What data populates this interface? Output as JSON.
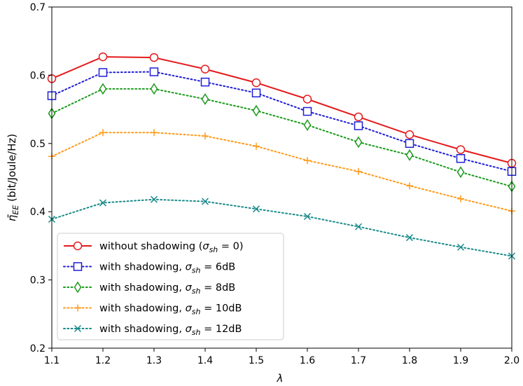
{
  "chart_data": {
    "type": "line",
    "x": [
      1.1,
      1.2,
      1.3,
      1.4,
      1.5,
      1.6,
      1.7,
      1.8,
      1.9,
      2.0
    ],
    "xlabel": "λ",
    "ylabel": "η̄EE (bit/Joule/Hz)",
    "xlim": [
      1.1,
      2.0
    ],
    "ylim": [
      0.2,
      0.7
    ],
    "xticks": [
      1.1,
      1.2,
      1.3,
      1.4,
      1.5,
      1.6,
      1.7,
      1.8,
      1.9,
      2.0
    ],
    "xtick_labels": [
      "1.1",
      "1.2",
      "1.3",
      "1.4",
      "1.5",
      "1.6",
      "1.7",
      "1.8",
      "1.9",
      "2.0"
    ],
    "yticks": [
      0.2,
      0.3,
      0.4,
      0.5,
      0.6,
      0.7
    ],
    "ytick_labels": [
      "0.2",
      "0.3",
      "0.4",
      "0.5",
      "0.6",
      "0.7"
    ],
    "grid": false,
    "legend_position": "bottom-left",
    "series": [
      {
        "name": "without shadowing (σsh = 0)",
        "color": "#e41a1c",
        "linestyle": "solid",
        "marker": "circle",
        "values": [
          0.595,
          0.627,
          0.626,
          0.609,
          0.589,
          0.565,
          0.539,
          0.513,
          0.491,
          0.471
        ]
      },
      {
        "name": "with shadowing, σsh = 6dB",
        "color": "#1f1fd6",
        "linestyle": "dotted",
        "marker": "square",
        "values": [
          0.57,
          0.604,
          0.605,
          0.59,
          0.574,
          0.547,
          0.526,
          0.5,
          0.478,
          0.459
        ]
      },
      {
        "name": "with shadowing, σsh = 8dB",
        "color": "#1a9a1a",
        "linestyle": "dotted",
        "marker": "diamond",
        "values": [
          0.544,
          0.58,
          0.58,
          0.565,
          0.548,
          0.527,
          0.502,
          0.483,
          0.458,
          0.437
        ]
      },
      {
        "name": "with shadowing, σsh = 10dB",
        "color": "#ff9a1a",
        "linestyle": "dotted",
        "marker": "plus",
        "values": [
          0.481,
          0.516,
          0.516,
          0.511,
          0.496,
          0.475,
          0.459,
          0.438,
          0.419,
          0.401
        ]
      },
      {
        "name": "with shadowing, σsh = 12dB",
        "color": "#1a8a8a",
        "linestyle": "dotted",
        "marker": "x",
        "values": [
          0.389,
          0.413,
          0.418,
          0.415,
          0.404,
          0.393,
          0.378,
          0.362,
          0.348,
          0.335
        ]
      }
    ],
    "legend": [
      {
        "prefix": "without shadowing (",
        "sym": "σ",
        "sub": "sh",
        "suffix": " = 0)"
      },
      {
        "prefix": "with shadowing, ",
        "sym": "σ",
        "sub": "sh",
        "suffix": " = 6dB"
      },
      {
        "prefix": "with shadowing, ",
        "sym": "σ",
        "sub": "sh",
        "suffix": " = 8dB"
      },
      {
        "prefix": "with shadowing, ",
        "sym": "σ",
        "sub": "sh",
        "suffix": " = 10dB"
      },
      {
        "prefix": "with shadowing, ",
        "sym": "σ",
        "sub": "sh",
        "suffix": " = 12dB"
      }
    ]
  }
}
